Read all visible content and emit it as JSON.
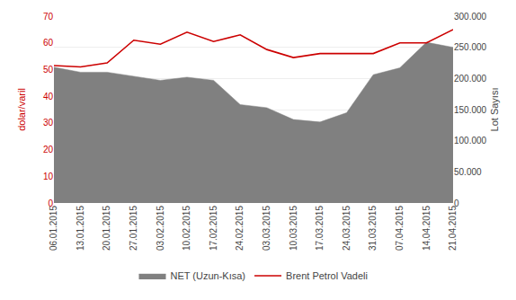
{
  "chart_data": {
    "type": "line",
    "categories": [
      "06.01.2015",
      "13.01.2015",
      "20.01.2015",
      "27.01.2015",
      "03.02.2015",
      "10.02.2015",
      "17.02.2015",
      "24.02.2015",
      "03.03.2015",
      "10.03.2015",
      "17.03.2015",
      "24.03.2015",
      "31.03.2015",
      "07.04.2015",
      "14.04.2015",
      "21.04.2015"
    ],
    "series": [
      {
        "name": "NET (Uzun-Kısa)",
        "type": "area",
        "color": "#808080",
        "axis": "y2",
        "values": [
          218000,
          210000,
          210000,
          203000,
          197000,
          202000,
          197000,
          158000,
          153000,
          134000,
          130000,
          145000,
          206000,
          217000,
          258000,
          250000
        ]
      },
      {
        "name": "Brent Petrol Vadeli",
        "type": "line",
        "color": "#cc0000",
        "values": [
          51.5,
          51.0,
          52.5,
          61.0,
          59.5,
          64.0,
          60.5,
          63.0,
          57.5,
          54.5,
          56.0,
          56.0,
          56.0,
          60.0,
          60.0,
          65.0
        ]
      }
    ],
    "ylabel": "dolar/varil",
    "y2label": "Lot Sayısı",
    "ylim": [
      0,
      70
    ],
    "yticks": [
      0,
      10,
      20,
      30,
      40,
      50,
      60,
      70
    ],
    "y2lim": [
      0,
      300000
    ],
    "y2ticks": [
      0,
      {
        "value": 50000,
        "label": "50.000"
      },
      {
        "value": 100000,
        "label": "100.000"
      },
      {
        "value": 150000,
        "label": "150.000"
      },
      {
        "value": 200000,
        "label": "200.000"
      },
      {
        "value": 250000,
        "label": "250.000"
      },
      {
        "value": 300000,
        "label": "300.000"
      }
    ],
    "grid": true,
    "legend": "bottom"
  }
}
